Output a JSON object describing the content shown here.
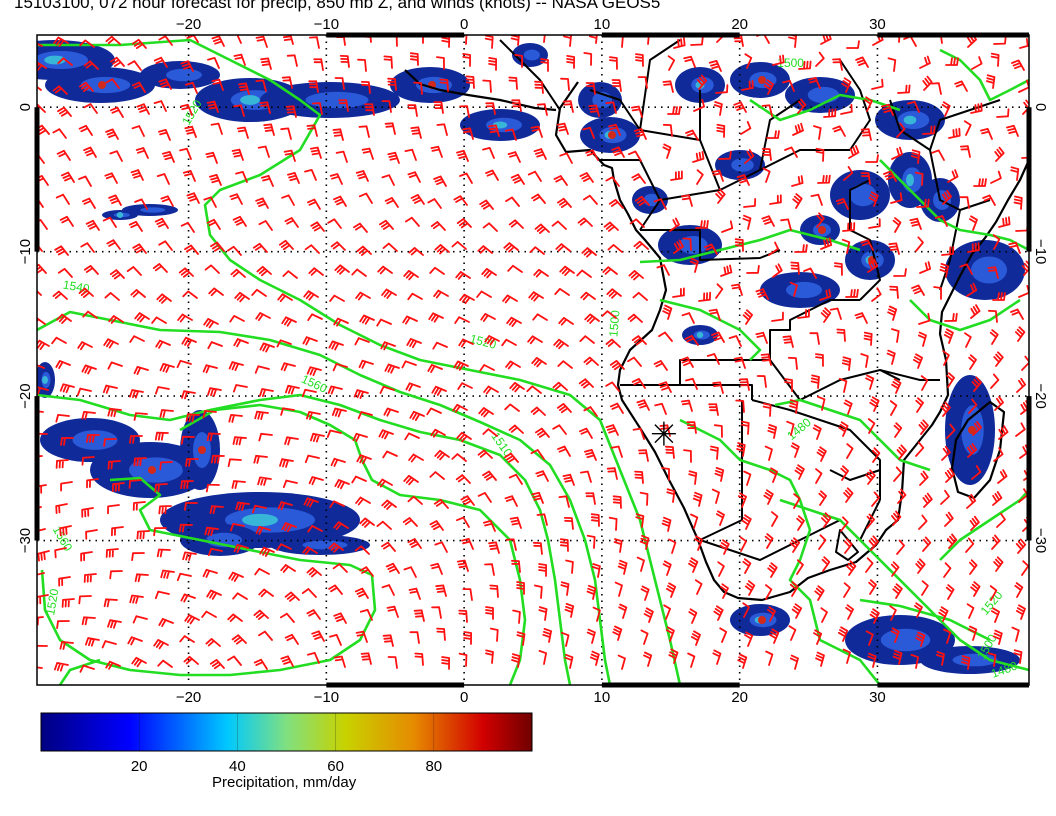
{
  "title": "15103100, 072 hour forecast for precip, 850 mb Z, and winds (knots) -- NASA GEOS5",
  "map": {
    "lon_range": [
      -31,
      41
    ],
    "lat_range": [
      -40,
      5
    ],
    "lon_ticks": [
      -20,
      -10,
      0,
      10,
      20,
      30
    ],
    "lat_ticks": [
      0,
      -10,
      -20,
      -30
    ],
    "lon_tick_labels": [
      "−20",
      "−10",
      "0",
      "10",
      "20",
      "30"
    ],
    "lat_tick_labels": [
      "0",
      "−10",
      "−20",
      "−30"
    ],
    "grid": "dotted",
    "contour_labels": [
      {
        "text": "1520",
        "lon": -19.5,
        "lat": -0.5,
        "angle": -60
      },
      {
        "text": "1540",
        "lon": -28.2,
        "lat": -12.7,
        "angle": 10
      },
      {
        "text": "1520",
        "lon": 1.3,
        "lat": -16.5,
        "angle": 15
      },
      {
        "text": "1560",
        "lon": -11.0,
        "lat": -19.4,
        "angle": 25
      },
      {
        "text": "1510",
        "lon": 2.5,
        "lat": -23.5,
        "angle": 55
      },
      {
        "text": "1500",
        "lon": 11.2,
        "lat": -15.0,
        "angle": -85
      },
      {
        "text": "1480",
        "lon": 24.5,
        "lat": -22.5,
        "angle": -40
      },
      {
        "text": "1500",
        "lon": 23.7,
        "lat": 2.8,
        "angle": 0
      },
      {
        "text": "1560",
        "lon": -29.4,
        "lat": -30.0,
        "angle": 60
      },
      {
        "text": "1520",
        "lon": -29.6,
        "lat": -34.3,
        "angle": -80
      },
      {
        "text": "1520",
        "lon": 38.5,
        "lat": -34.5,
        "angle": -50
      },
      {
        "text": "1500",
        "lon": 38.2,
        "lat": -37.5,
        "angle": -60
      },
      {
        "text": "1480",
        "lon": 39.3,
        "lat": -39.2,
        "angle": -20
      }
    ],
    "marker": {
      "label": "station-marker",
      "lon": 14.5,
      "lat": -22.6
    }
  },
  "colorbar": {
    "min": 0,
    "max": 100,
    "ticks": [
      20,
      40,
      60,
      80
    ],
    "tick_labels": [
      "20",
      "40",
      "60",
      "80"
    ],
    "title": "Precipitation, mm/day",
    "colors": [
      "#000080",
      "#0000ff",
      "#00c8ff",
      "#80e080",
      "#c8d200",
      "#e68a00",
      "#d20000",
      "#700000"
    ]
  },
  "colors": {
    "precip_low": "#102a9a",
    "precip_mid": "#38b6d8",
    "precip_high": "#d22a1a",
    "geopotential_contours": "#22dd22",
    "wind_barbs": "#ff1111",
    "coastlines": "#000000"
  }
}
